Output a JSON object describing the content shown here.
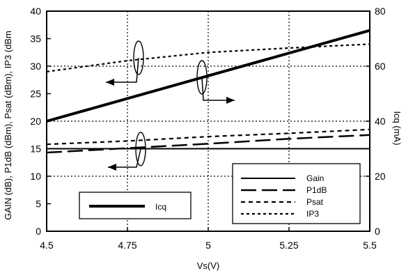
{
  "chart_data": {
    "type": "line",
    "xlabel": "Vs(V)",
    "ylabel_left": "GAIN (dB),  P1dB (dBm), Psat (dBm),  IP3 (dBm",
    "ylabel_right": "Icq (mA)",
    "x_ticks": [
      "4.5",
      "4.75",
      "5",
      "5.25",
      "5.5"
    ],
    "y_left_ticks": [
      "0",
      "5",
      "10",
      "15",
      "20",
      "25",
      "30",
      "35",
      "40"
    ],
    "y_right_ticks": [
      "0",
      "20",
      "40",
      "60",
      "80"
    ],
    "xlim": [
      4.5,
      5.5
    ],
    "ylim_left": [
      0,
      40
    ],
    "ylim_right": [
      0,
      80
    ],
    "grid": "dotted, major ticks",
    "series": [
      {
        "name": "Gain",
        "axis": "left",
        "style": "solid-thin",
        "x": [
          4.5,
          5.5
        ],
        "y": [
          15.0,
          15.0
        ]
      },
      {
        "name": "P1dB",
        "axis": "left",
        "style": "long-dash",
        "x": [
          4.5,
          4.75,
          5.0,
          5.25,
          5.5
        ],
        "y": [
          14.3,
          15.1,
          15.9,
          16.8,
          17.5
        ]
      },
      {
        "name": "Psat",
        "axis": "left",
        "style": "short-dash",
        "x": [
          4.5,
          4.75,
          5.0,
          5.25,
          5.5
        ],
        "y": [
          15.8,
          16.4,
          17.2,
          17.8,
          18.5
        ]
      },
      {
        "name": "IP3",
        "axis": "left",
        "style": "dotted-dash",
        "x": [
          4.5,
          4.75,
          5.0,
          5.25,
          5.5
        ],
        "y": [
          29.0,
          31.0,
          32.5,
          33.3,
          34.0
        ]
      },
      {
        "name": "Icq",
        "axis": "right",
        "style": "solid-thick",
        "x": [
          4.5,
          5.5
        ],
        "y": [
          40.0,
          73.0
        ]
      }
    ],
    "legend_main": {
      "placement": "bottom-right",
      "entries": [
        "Gain",
        "P1dB",
        "Psat",
        "IP3"
      ]
    },
    "legend_icq": {
      "placement": "bottom-left",
      "entries": [
        "Icq"
      ]
    }
  }
}
